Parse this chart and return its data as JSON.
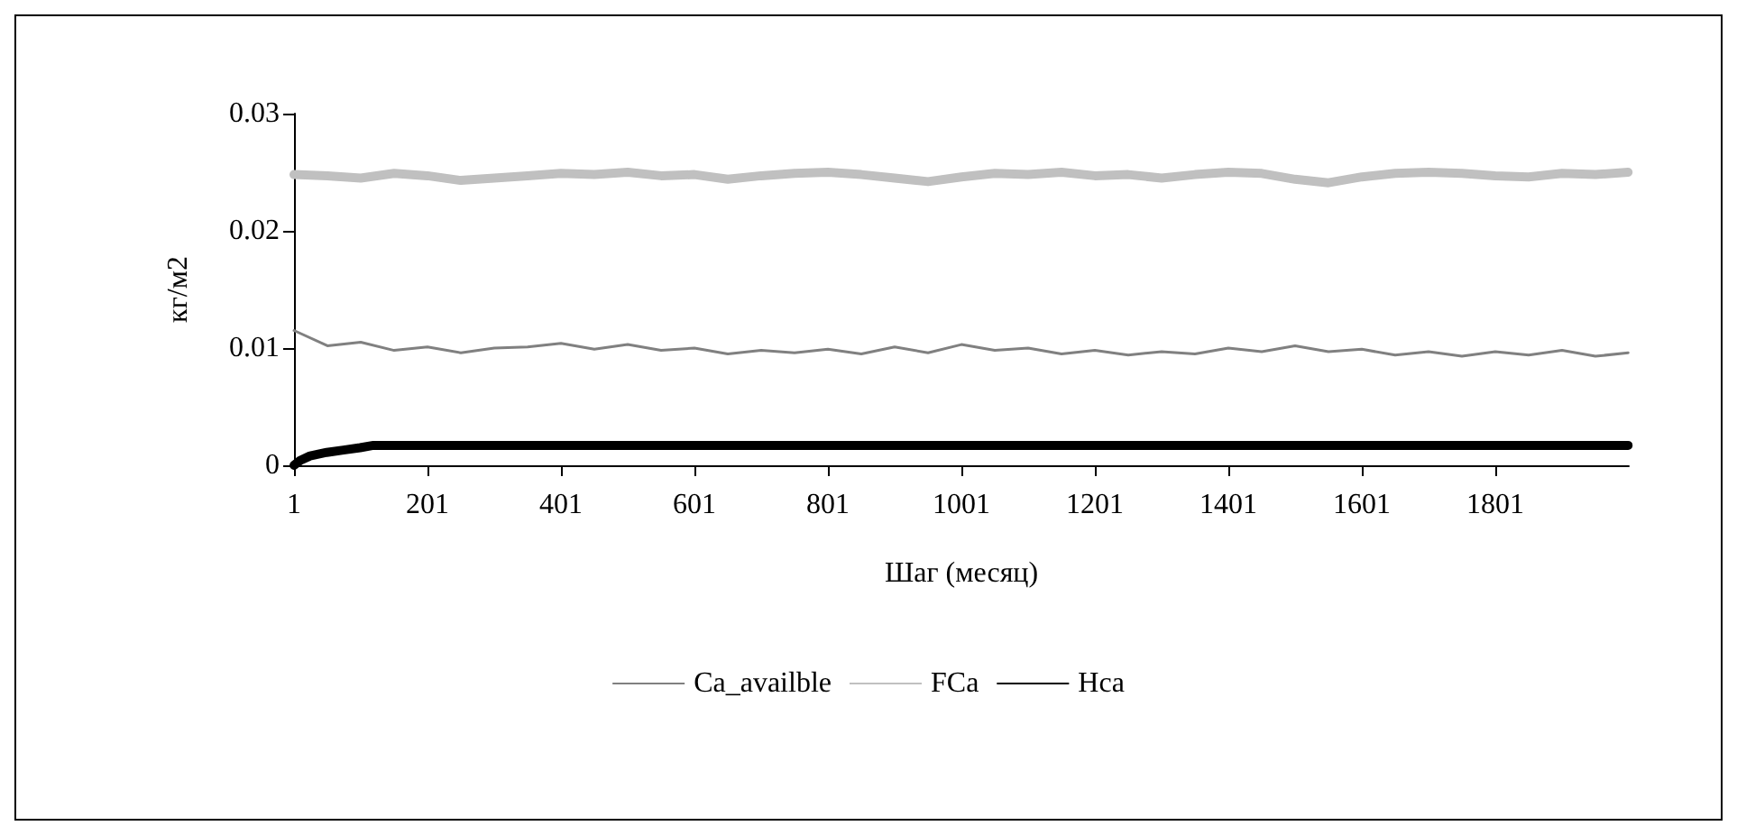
{
  "chart_data": {
    "type": "line",
    "xlabel": "Шаг (месяц)",
    "ylabel": "кг/м2",
    "x": [
      1,
      51,
      101,
      151,
      201,
      251,
      301,
      351,
      401,
      451,
      501,
      551,
      601,
      651,
      701,
      751,
      801,
      851,
      901,
      951,
      1001,
      1051,
      1101,
      1151,
      1201,
      1251,
      1301,
      1351,
      1401,
      1451,
      1501,
      1551,
      1601,
      1651,
      1701,
      1751,
      1801,
      1851,
      1901,
      1951,
      2000
    ],
    "series": [
      {
        "name": "Ca_availble",
        "color": "#808080",
        "values": [
          0.0115,
          0.0102,
          0.0105,
          0.0098,
          0.0101,
          0.0096,
          0.01,
          0.0101,
          0.0104,
          0.0099,
          0.0103,
          0.0098,
          0.01,
          0.0095,
          0.0098,
          0.0096,
          0.0099,
          0.0095,
          0.0101,
          0.0096,
          0.0103,
          0.0098,
          0.01,
          0.0095,
          0.0098,
          0.0094,
          0.0097,
          0.0095,
          0.01,
          0.0097,
          0.0102,
          0.0097,
          0.0099,
          0.0094,
          0.0097,
          0.0093,
          0.0097,
          0.0094,
          0.0098,
          0.0093,
          0.0096
        ]
      },
      {
        "name": "FCa",
        "color": "#c0c0c0",
        "values": [
          0.0248,
          0.0247,
          0.0245,
          0.0249,
          0.0247,
          0.0243,
          0.0245,
          0.0247,
          0.0249,
          0.0248,
          0.025,
          0.0247,
          0.0248,
          0.0244,
          0.0247,
          0.0249,
          0.025,
          0.0248,
          0.0245,
          0.0242,
          0.0246,
          0.0249,
          0.0248,
          0.025,
          0.0247,
          0.0248,
          0.0245,
          0.0248,
          0.025,
          0.0249,
          0.0244,
          0.0241,
          0.0246,
          0.0249,
          0.025,
          0.0249,
          0.0247,
          0.0246,
          0.0249,
          0.0248,
          0.025
        ]
      },
      {
        "name": "Hca",
        "color": "#000000",
        "x": [
          1,
          10,
          25,
          50,
          75,
          100,
          120,
          2000
        ],
        "values": [
          0,
          0.0004,
          0.0008,
          0.0011,
          0.0013,
          0.0015,
          0.0017,
          0.0017
        ]
      }
    ],
    "xlim": [
      1,
      2001
    ],
    "xticks": [
      1,
      201,
      401,
      601,
      801,
      1001,
      1201,
      1401,
      1601,
      1801
    ],
    "ylim": [
      0,
      0.03
    ],
    "yticks": [
      0,
      0.01,
      0.02,
      0.03
    ],
    "grid": false,
    "legend": "bottom",
    "marker": "none",
    "line_style": "solid"
  }
}
